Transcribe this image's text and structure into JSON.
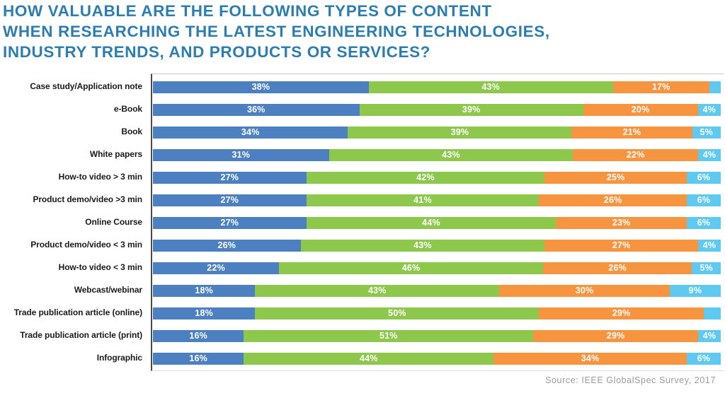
{
  "title": {
    "lines": [
      "HOW VALUABLE ARE THE FOLLOWING TYPES OF CONTENT",
      "WHEN RESEARCHING THE LATEST ENGINEERING TECHNOLOGIES,",
      "INDUSTRY TRENDS, AND PRODUCTS OR SERVICES?"
    ]
  },
  "source": "Source: IEEE GlobalSpec Survey, 2017",
  "colors": {
    "title": "#2C7DB1",
    "axis_line": "#4a4a4a",
    "plot_top_border": "#c9c9c9",
    "plot_bottom_border": "#dcdcdc",
    "category_label": "#1b1b1b",
    "value_label": "#ffffff",
    "source_text": "#9b9b9b"
  },
  "chart_data": {
    "type": "bar",
    "stacked": true,
    "orientation": "horizontal",
    "unit": "percent",
    "value_label_suffix": "%",
    "min_value_for_label": 4,
    "axis_range": [
      0,
      100
    ],
    "grid": false,
    "legend": false,
    "title": "HOW VALUABLE ARE THE FOLLOWING TYPES OF CONTENT WHEN RESEARCHING THE LATEST ENGINEERING TECHNOLOGIES, INDUSTRY TRENDS, AND PRODUCTS OR SERVICES?",
    "categories": [
      "Case study/Application note",
      "e-Book",
      "Book",
      "White papers",
      "How-to video > 3 min",
      "Product demo/video >3 min",
      "Online Course",
      "Product demo/video < 3 min",
      "How-to video < 3 min",
      "Webcast/webinar",
      "Trade publication article (online)",
      "Trade publication article (print)",
      "Infographic"
    ],
    "series": [
      {
        "name": "series-1-blue",
        "color": "#4C80C0",
        "values": [
          38,
          36,
          34,
          31,
          27,
          27,
          27,
          26,
          22,
          18,
          18,
          16,
          16
        ]
      },
      {
        "name": "series-2-green",
        "color": "#8DC74C",
        "values": [
          43,
          39,
          39,
          43,
          42,
          41,
          44,
          43,
          46,
          43,
          50,
          51,
          44
        ]
      },
      {
        "name": "series-3-orange",
        "color": "#F79440",
        "values": [
          17,
          20,
          21,
          22,
          25,
          26,
          23,
          27,
          26,
          30,
          29,
          29,
          34
        ]
      },
      {
        "name": "series-4-lightblue",
        "color": "#5FC9F2",
        "values": [
          2,
          4,
          5,
          4,
          6,
          6,
          6,
          4,
          5,
          9,
          3,
          4,
          6
        ]
      }
    ]
  }
}
